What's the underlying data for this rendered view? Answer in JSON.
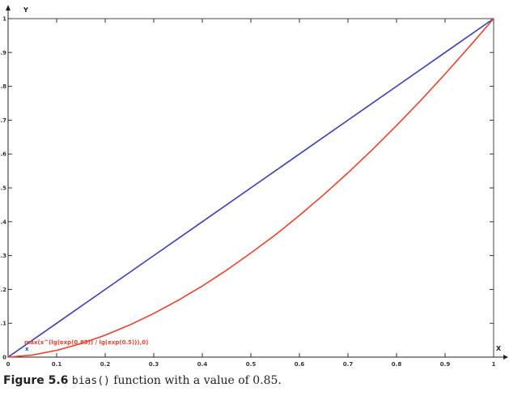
{
  "chart_data": {
    "type": "line",
    "xlabel": "X",
    "ylabel": "Y",
    "xlim": [
      0,
      1
    ],
    "ylim": [
      0,
      1
    ],
    "x_ticks": [
      "0",
      "0.1",
      "0.2",
      "0.3",
      "0.4",
      "0.5",
      "0.6",
      "0.7",
      "0.8",
      "0.9",
      "1"
    ],
    "y_ticks": [
      "0",
      "0.1",
      "0.2",
      "0.3",
      "0.4",
      "0.5",
      "0.6",
      "0.7",
      "0.8",
      "0.9",
      "1"
    ],
    "grid": false,
    "series": [
      {
        "name": "x",
        "color": "#3c3cb4",
        "x": [
          0,
          0.1,
          0.2,
          0.3,
          0.4,
          0.5,
          0.6,
          0.7,
          0.8,
          0.9,
          1.0
        ],
        "y": [
          0,
          0.1,
          0.2,
          0.3,
          0.4,
          0.5,
          0.6,
          0.7,
          0.8,
          0.9,
          1.0
        ]
      },
      {
        "name": "max(x^(lg(exp(0.85)) / lg(exp(0.5))),0)",
        "color": "#e8422c",
        "x": [
          0,
          0.05,
          0.1,
          0.15,
          0.2,
          0.25,
          0.3,
          0.35,
          0.4,
          0.45,
          0.5,
          0.55,
          0.6,
          0.65,
          0.7,
          0.75,
          0.8,
          0.85,
          0.9,
          0.95,
          1.0
        ],
        "y": [
          0,
          0.0061,
          0.02,
          0.0398,
          0.0648,
          0.0947,
          0.129,
          0.1676,
          0.2102,
          0.2568,
          0.3078,
          0.3606,
          0.4187,
          0.4798,
          0.5445,
          0.6126,
          0.684,
          0.7586,
          0.8364,
          0.917,
          1.0
        ]
      }
    ]
  },
  "caption": {
    "figure_label": "Figure 5.6",
    "code": "bias()",
    "text": " function with a value of 0.85."
  }
}
